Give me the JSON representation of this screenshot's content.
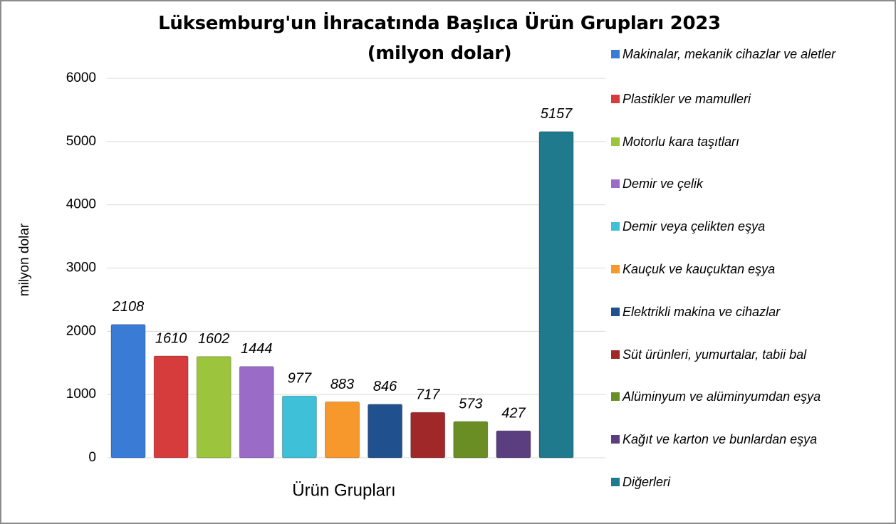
{
  "chart_data": {
    "type": "bar",
    "title": "Lüksemburg'un İhracatında Başlıca Ürün Grupları 2023 (milyon dolar)",
    "xlabel": "Ürün Grupları",
    "ylabel": "milyon dolar",
    "ylim": [
      0,
      6000
    ],
    "yticks": [
      0,
      1000,
      2000,
      3000,
      4000,
      5000,
      6000
    ],
    "grid": true,
    "legend": "right",
    "series": [
      {
        "name": "Makinalar, mekanik cihazlar ve aletler",
        "color": "#3a7bd5",
        "values": [
          2108
        ]
      },
      {
        "name": "Plastikler ve mamulleri",
        "color": "#d63c3c",
        "values": [
          1610
        ]
      },
      {
        "name": "Motorlu kara taşıtları",
        "color": "#9cc43c",
        "values": [
          1602
        ]
      },
      {
        "name": "Demir ve çelik",
        "color": "#9a6cc8",
        "values": [
          1444
        ]
      },
      {
        "name": "Demir veya çelikten eşya",
        "color": "#3ec0d8",
        "values": [
          977
        ]
      },
      {
        "name": "Kauçuk ve kauçuktan eşya",
        "color": "#f7982c",
        "values": [
          883
        ]
      },
      {
        "name": "Elektrikli makina ve cihazlar",
        "color": "#21508e",
        "values": [
          846
        ]
      },
      {
        "name": "Süt ürünleri, yumurtalar, tabii bal",
        "color": "#a02828",
        "values": [
          717
        ]
      },
      {
        "name": "Alüminyum ve alüminyumdan eşya",
        "color": "#6a8e24",
        "values": [
          573
        ]
      },
      {
        "name": "Kağıt ve karton ve bunlardan eşya",
        "color": "#5a3e80",
        "values": [
          427
        ]
      },
      {
        "name": "Diğerleri",
        "color": "#1e7a8c",
        "values": [
          5157
        ]
      }
    ]
  }
}
